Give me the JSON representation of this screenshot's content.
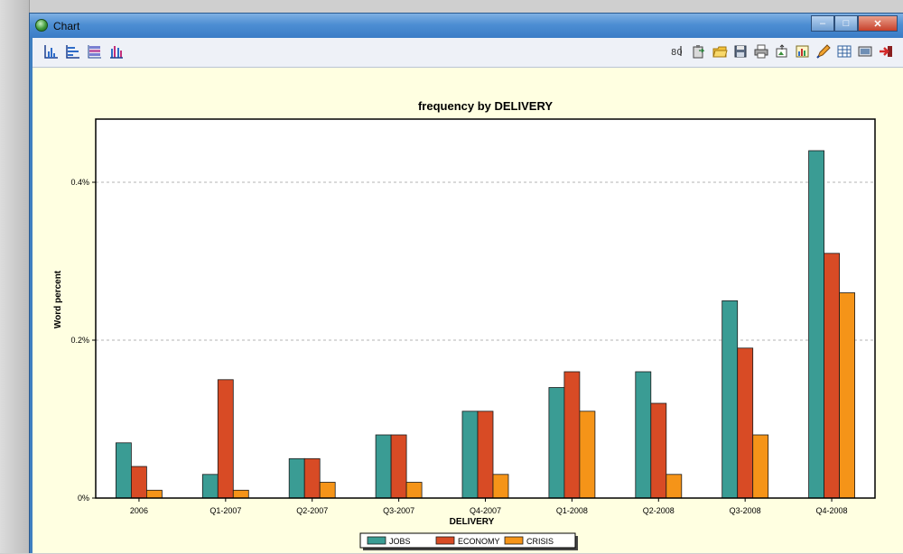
{
  "window": {
    "title": "Chart",
    "controls": {
      "minimize": "–",
      "maximize": "□",
      "close": "✕"
    }
  },
  "toolbar": {
    "left_tools": [
      {
        "name": "bar-chart-tool-icon"
      },
      {
        "name": "horizontal-bar-chart-tool-icon"
      },
      {
        "name": "stacked-chart-tool-icon"
      },
      {
        "name": "grouped-bar-chart-tool-icon"
      }
    ],
    "right_tools": [
      {
        "name": "label-numbers-icon"
      },
      {
        "name": "copy-clipboard-icon"
      },
      {
        "name": "open-folder-icon"
      },
      {
        "name": "save-disk-icon"
      },
      {
        "name": "print-icon"
      },
      {
        "name": "export-image-icon"
      },
      {
        "name": "chart-editor-icon"
      },
      {
        "name": "edit-pencil-icon"
      },
      {
        "name": "data-table-icon"
      },
      {
        "name": "screen-display-icon"
      },
      {
        "name": "exit-icon"
      }
    ]
  },
  "colors": {
    "jobs": "#3a9c94",
    "economy": "#d84b25",
    "crisis": "#f59418",
    "plot_bg": "#ffffff",
    "panel_bg": "#ffffe1"
  },
  "chart_data": {
    "type": "bar",
    "title": "frequency by DELIVERY",
    "xlabel": "DELIVERY",
    "ylabel": "Word percent",
    "categories": [
      "2006",
      "Q1-2007",
      "Q2-2007",
      "Q3-2007",
      "Q4-2007",
      "Q1-2008",
      "Q2-2008",
      "Q3-2008",
      "Q4-2008"
    ],
    "series": [
      {
        "name": "JOBS",
        "values": [
          0.07,
          0.03,
          0.05,
          0.08,
          0.11,
          0.14,
          0.16,
          0.25,
          0.44
        ]
      },
      {
        "name": "ECONOMY",
        "values": [
          0.04,
          0.15,
          0.05,
          0.08,
          0.11,
          0.16,
          0.12,
          0.19,
          0.31
        ]
      },
      {
        "name": "CRISIS",
        "values": [
          0.01,
          0.01,
          0.02,
          0.02,
          0.03,
          0.11,
          0.03,
          0.08,
          0.26
        ]
      }
    ],
    "yticks": [
      {
        "value": 0,
        "label": "0%"
      },
      {
        "value": 0.2,
        "label": "0.2%"
      },
      {
        "value": 0.4,
        "label": "0.4%"
      }
    ],
    "ylim": [
      0,
      0.48
    ],
    "grid": true,
    "legend_position": "bottom"
  }
}
